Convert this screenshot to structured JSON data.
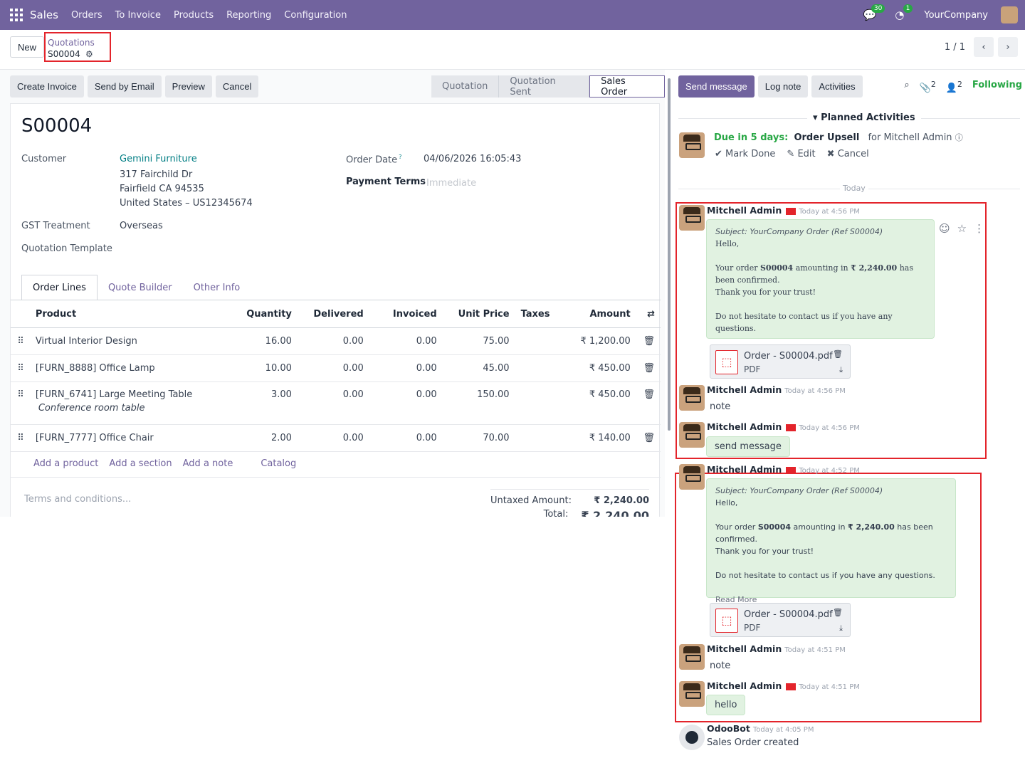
{
  "topnav": {
    "app_name": "Sales",
    "menu": [
      "Orders",
      "To Invoice",
      "Products",
      "Reporting",
      "Configuration"
    ],
    "messages_badge": "30",
    "activity_badge": "1",
    "company": "YourCompany"
  },
  "breadcrumb": {
    "new_label": "New",
    "parent": "Quotations",
    "current": "S00004",
    "pager": "1 / 1"
  },
  "actions": [
    "Create Invoice",
    "Send by Email",
    "Preview",
    "Cancel"
  ],
  "status": [
    "Quotation",
    "Quotation Sent",
    "Sales Order"
  ],
  "form": {
    "title": "S00004",
    "customer_label": "Customer",
    "customer_name": "Gemini Furniture",
    "address1": "317 Fairchild Dr",
    "address2": "Fairfield CA 94535",
    "address3": "United States – US12345674",
    "gst_label": "GST Treatment",
    "gst_value": "Overseas",
    "template_label": "Quotation Template",
    "order_date_label": "Order Date",
    "order_date_help": "?",
    "order_date_value": "04/06/2026 16:05:43",
    "payment_terms_label": "Payment Terms",
    "payment_terms_placeholder": "Immediate"
  },
  "tabs": [
    "Order Lines",
    "Quote Builder",
    "Other Info"
  ],
  "lines": {
    "headers": [
      "Product",
      "Quantity",
      "Delivered",
      "Invoiced",
      "Unit Price",
      "Taxes",
      "Amount"
    ],
    "rows": [
      {
        "product": "Virtual Interior Design",
        "desc": "",
        "qty": "16.00",
        "delivered": "0.00",
        "invoiced": "0.00",
        "price": "75.00",
        "amount": "₹ 1,200.00"
      },
      {
        "product": "[FURN_8888] Office Lamp",
        "desc": "",
        "qty": "10.00",
        "delivered": "0.00",
        "invoiced": "0.00",
        "price": "45.00",
        "amount": "₹ 450.00"
      },
      {
        "product": "[FURN_6741] Large Meeting Table",
        "desc": "Conference room table",
        "qty": "3.00",
        "delivered": "0.00",
        "invoiced": "0.00",
        "price": "150.00",
        "amount": "₹ 450.00"
      },
      {
        "product": "[FURN_7777] Office Chair",
        "desc": "",
        "qty": "2.00",
        "delivered": "0.00",
        "invoiced": "0.00",
        "price": "70.00",
        "amount": "₹ 140.00"
      }
    ],
    "add_links": [
      "Add a product",
      "Add a section",
      "Add a note",
      "Catalog"
    ]
  },
  "terms_placeholder": "Terms and conditions...",
  "totals": {
    "untaxed_label": "Untaxed Amount:",
    "untaxed_value": "₹ 2,240.00",
    "total_label": "Total:",
    "total_value": "₹ 2,240.00"
  },
  "chatter": {
    "send_message": "Send message",
    "log_note": "Log note",
    "activities": "Activities",
    "attachments_count": "2",
    "followers_count": "2",
    "following": "Following",
    "planned_title": "Planned Activities",
    "due_text": "Due in 5 days:",
    "due_activity": "Order Upsell",
    "due_for": "for Mitchell Admin",
    "mark_done": "Mark Done",
    "edit": "Edit",
    "cancel": "Cancel",
    "today": "Today",
    "messages": [
      {
        "author": "Mitchell Admin",
        "time": "Today at 4:56 PM"
      },
      {
        "author": "Mitchell Admin",
        "time": "Today at 4:56 PM",
        "body": "note"
      },
      {
        "author": "Mitchell Admin",
        "time": "Today at 4:56 PM",
        "body": "send message"
      },
      {
        "author": "Mitchell Admin",
        "time": "Today at 4:52 PM"
      },
      {
        "author": "Mitchell Admin",
        "time": "Today at 4:51 PM",
        "body": "note"
      },
      {
        "author": "Mitchell Admin",
        "time": "Today at 4:51 PM",
        "body": "hello"
      },
      {
        "author": "OdooBot",
        "time": "Today at 4:05 PM",
        "body": "Sales Order created"
      }
    ],
    "email": {
      "subject": "Subject: YourCompany Order (Ref S00004)",
      "hello": "Hello,",
      "line_pre": "Your order",
      "order_ref": "S00004",
      "line_mid": "amounting in",
      "amount": "₹ 2,240.00",
      "line_post": "has been confirmed.",
      "thanks": "Thank you for your trust!",
      "contact": "Do not hesitate to contact us if you have any questions.",
      "read_more": "Read More"
    },
    "attachment": {
      "name": "Order - S00004.pdf",
      "type": "PDF"
    }
  }
}
